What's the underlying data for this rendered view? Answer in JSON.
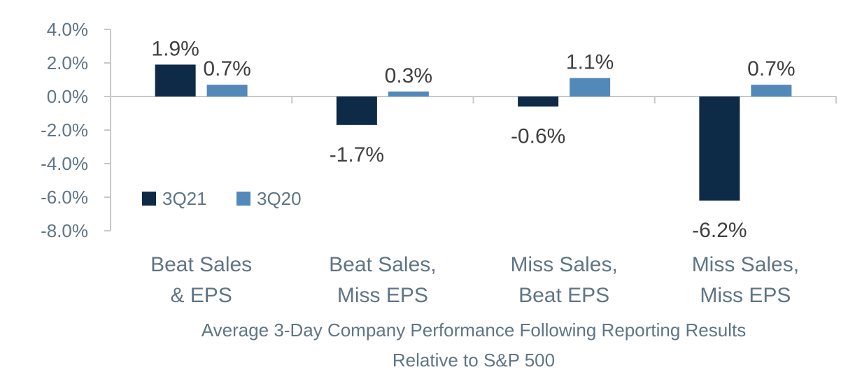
{
  "chart_data": {
    "type": "bar",
    "categories": [
      [
        "Beat Sales",
        "& EPS"
      ],
      [
        "Beat Sales,",
        "Miss EPS"
      ],
      [
        "Miss Sales,",
        "Beat EPS"
      ],
      [
        "Miss Sales,",
        "Miss EPS"
      ]
    ],
    "series": [
      {
        "name": "3Q21",
        "values": [
          1.9,
          -1.7,
          -0.6,
          -6.2
        ],
        "labels": [
          "1.9%",
          "-1.7%",
          "-0.6%",
          "-6.2%"
        ],
        "color": "#0d2a47"
      },
      {
        "name": "3Q20",
        "values": [
          0.7,
          0.3,
          1.1,
          0.7
        ],
        "labels": [
          "0.7%",
          "0.3%",
          "1.1%",
          "0.7%"
        ],
        "color": "#5389b8"
      }
    ],
    "xlabel": [
      "Average 3-Day Company Performance Following Reporting Results",
      "Relative to S&P 500"
    ],
    "ylim": [
      -8,
      4
    ],
    "yticks": [
      4,
      2,
      0,
      -2,
      -4,
      -6,
      -8
    ],
    "ytick_labels": [
      "4.0%",
      "2.0%",
      "0.0%",
      "-2.0%",
      "-4.0%",
      "-6.0%",
      "-8.0%"
    ],
    "legend_position": "inside-left",
    "grid": false,
    "axis_color": "#c8c8c8",
    "text_color": "#5f7585"
  }
}
